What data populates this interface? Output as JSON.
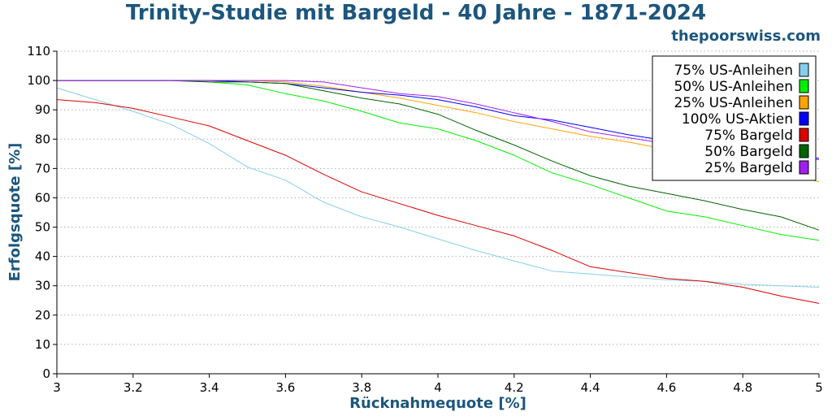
{
  "watermark": "thepoorswiss.com",
  "chart_data": {
    "type": "line",
    "title": "Trinity-Studie mit Bargeld - 40 Jahre - 1871-2024",
    "xlabel": "Rücknahmequote [%]",
    "ylabel": "Erfolgsquote [%]",
    "xlim": [
      3,
      5
    ],
    "ylim": [
      0,
      110
    ],
    "x_ticks": [
      "3",
      "3.2",
      "3.4",
      "3.6",
      "3.8",
      "4",
      "4.2",
      "4.4",
      "4.6",
      "4.8",
      "5"
    ],
    "y_ticks": [
      "0",
      "10",
      "20",
      "30",
      "40",
      "50",
      "60",
      "70",
      "80",
      "90",
      "100",
      "110"
    ],
    "grid": "horizontal dotted",
    "legend_position": "top-right",
    "x": [
      3.0,
      3.1,
      3.2,
      3.3,
      3.4,
      3.5,
      3.6,
      3.7,
      3.8,
      3.9,
      4.0,
      4.1,
      4.2,
      4.3,
      4.4,
      4.5,
      4.6,
      4.7,
      4.8,
      4.9,
      5.0
    ],
    "series": [
      {
        "name": "75% US-Anleihen",
        "color": "#87ceeb",
        "values": [
          97.5,
          93.5,
          89.5,
          85.0,
          78.5,
          70.5,
          66.0,
          58.5,
          53.5,
          50.0,
          46.0,
          42.0,
          38.5,
          35.0,
          34.0,
          33.0,
          32.0,
          31.5,
          30.5,
          30.0,
          29.5
        ]
      },
      {
        "name": "50% US-Anleihen",
        "color": "#00ee00",
        "values": [
          100,
          100,
          100,
          100,
          99.5,
          98.5,
          95.5,
          93.0,
          89.5,
          85.5,
          83.5,
          79.5,
          74.5,
          68.5,
          64.5,
          60.0,
          55.5,
          53.5,
          50.5,
          47.5,
          45.5
        ]
      },
      {
        "name": "25% US-Anleihen",
        "color": "#ffa500",
        "values": [
          100,
          100,
          100,
          100,
          100,
          100,
          99.5,
          98.0,
          96.0,
          94.0,
          91.5,
          89.0,
          86.0,
          83.5,
          81.0,
          79.0,
          76.5,
          73.5,
          71.0,
          68.5,
          65.5
        ]
      },
      {
        "name": "100% US-Aktien",
        "color": "#0000ff",
        "values": [
          100,
          100,
          100,
          100,
          100,
          99.5,
          99.0,
          97.5,
          96.0,
          95.0,
          93.5,
          91.0,
          88.0,
          86.5,
          84.0,
          81.5,
          79.5,
          77.5,
          75.5,
          74.0,
          73.5
        ]
      },
      {
        "name": "75% Bargeld",
        "color": "#dd0000",
        "values": [
          93.5,
          92.5,
          90.5,
          87.5,
          84.5,
          79.5,
          74.5,
          68.0,
          62.0,
          58.0,
          54.0,
          50.5,
          47.0,
          42.0,
          36.5,
          34.5,
          32.5,
          31.5,
          29.5,
          26.5,
          24.0
        ]
      },
      {
        "name": "50% Bargeld",
        "color": "#006400",
        "values": [
          100,
          100,
          100,
          100,
          99.5,
          99.5,
          99.0,
          96.5,
          94.0,
          92.0,
          88.5,
          83.0,
          78.0,
          72.5,
          67.5,
          64.0,
          61.5,
          59.0,
          56.0,
          53.5,
          49.0
        ]
      },
      {
        "name": "25% Bargeld",
        "color": "#a020f0",
        "values": [
          100,
          100,
          100,
          100,
          100,
          100,
          100,
          99.5,
          97.5,
          95.5,
          94.5,
          92.0,
          89.0,
          86.0,
          82.5,
          80.5,
          78.5,
          76.0,
          75.0,
          74.0,
          73.0
        ]
      }
    ]
  }
}
